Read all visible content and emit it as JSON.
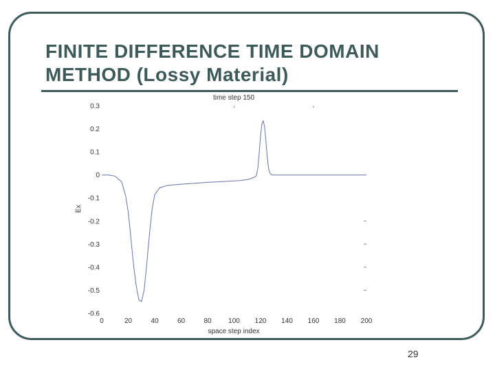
{
  "slide": {
    "title": "FINITE DIFFERENCE TIME DOMAIN\nMETHOD (Lossy Material)",
    "page_number": "29",
    "frame_color": "#3d5a59"
  },
  "chart_data": {
    "type": "line",
    "title": "time step 150",
    "xlabel": "space step index",
    "ylabel": "Ex",
    "xlim": [
      0,
      200
    ],
    "ylim": [
      -0.6,
      0.3
    ],
    "x_ticks": [
      0,
      20,
      40,
      60,
      80,
      100,
      120,
      140,
      160,
      180,
      200
    ],
    "x_tick_labels": [
      "0",
      "20",
      "40",
      "60",
      "80",
      "100",
      "120",
      "140",
      "160",
      "180",
      "200"
    ],
    "y_ticks": [
      0.3,
      0.2,
      0.1,
      0,
      -0.1,
      -0.2,
      -0.3,
      -0.4,
      -0.5,
      -0.6
    ],
    "y_tick_labels": [
      "0.3",
      "0.2",
      "0.1",
      "0",
      "-0.1",
      "-0.2",
      "-0.3",
      "-0.4",
      "-0.5",
      "-0.6"
    ],
    "grid": false,
    "line_color": "#6a6fb0",
    "series": [
      {
        "x": [
          0,
          5,
          10,
          15,
          18,
          20,
          22,
          24,
          26,
          28,
          30,
          32,
          34,
          36,
          38,
          40,
          44,
          50,
          60,
          70,
          80,
          90,
          100,
          105,
          110,
          112,
          114,
          116,
          117,
          118,
          119,
          120,
          121,
          122,
          123,
          124,
          125,
          126,
          127,
          128,
          129,
          130,
          131,
          135,
          140,
          160,
          180,
          200
        ],
        "y": [
          0,
          0,
          -0.005,
          -0.03,
          -0.09,
          -0.16,
          -0.27,
          -0.39,
          -0.48,
          -0.54,
          -0.55,
          -0.5,
          -0.39,
          -0.26,
          -0.15,
          -0.085,
          -0.055,
          -0.045,
          -0.04,
          -0.036,
          -0.032,
          -0.029,
          -0.026,
          -0.024,
          -0.02,
          -0.017,
          -0.013,
          -0.008,
          0.0,
          0.03,
          0.1,
          0.17,
          0.22,
          0.235,
          0.21,
          0.15,
          0.08,
          0.03,
          0.008,
          0.002,
          0.0,
          0.0,
          0.0,
          0.0,
          0.0,
          0.0,
          0.0,
          0.0
        ]
      }
    ]
  }
}
